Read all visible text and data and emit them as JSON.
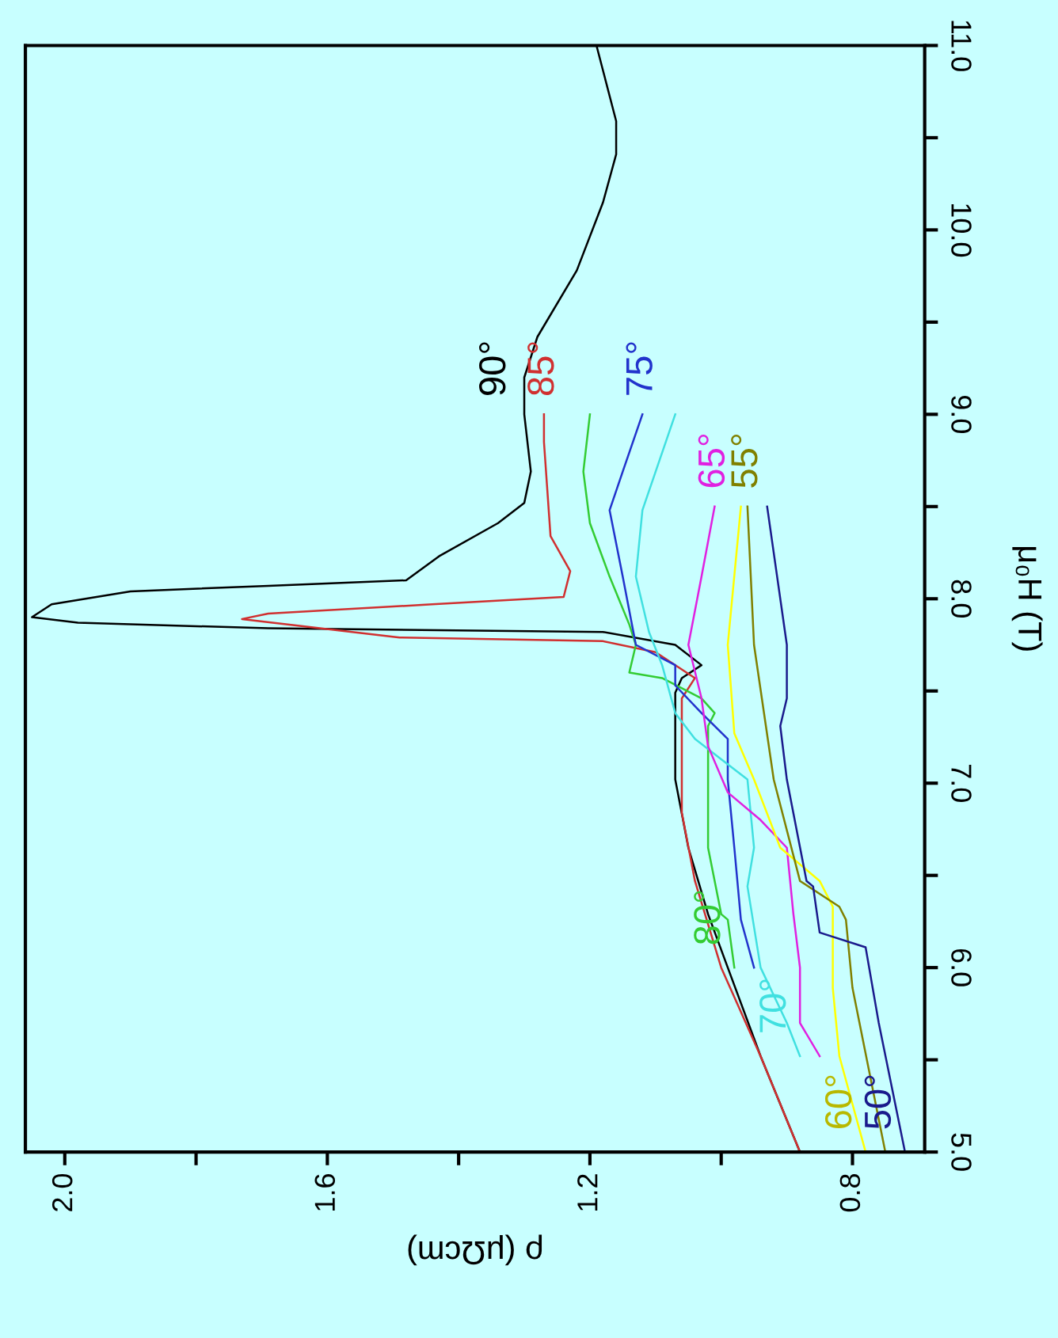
{
  "chart_data": {
    "type": "line",
    "xlabel": "ρ (μΩcm)",
    "ylabel": "μ₀H (T)",
    "xlim": [
      2.06,
      0.69
    ],
    "ylim": [
      5,
      11
    ],
    "xticks": [
      {
        "value": 0.8,
        "label": "0.8"
      },
      {
        "value": 1.0,
        "label": null
      },
      {
        "value": 1.2,
        "label": "1.2"
      },
      {
        "value": 1.4,
        "label": null
      },
      {
        "value": 1.6,
        "label": "1.6"
      },
      {
        "value": 1.8,
        "label": null
      },
      {
        "value": 2.0,
        "label": "2.0"
      }
    ],
    "yticks": [
      {
        "value": 5,
        "label": "5.0"
      },
      {
        "value": 5.5,
        "label": null
      },
      {
        "value": 6,
        "label": "6.0"
      },
      {
        "value": 6.5,
        "label": null
      },
      {
        "value": 7,
        "label": "7.0"
      },
      {
        "value": 7.5,
        "label": null
      },
      {
        "value": 8,
        "label": "8.0"
      },
      {
        "value": 8.5,
        "label": null
      },
      {
        "value": 9,
        "label": "9.0"
      },
      {
        "value": 9.5,
        "label": null
      },
      {
        "value": 10,
        "label": "10.0"
      },
      {
        "value": 10.5,
        "label": null
      },
      {
        "value": 11,
        "label": "11.0"
      }
    ],
    "grid": false,
    "legend": false,
    "series": [
      {
        "name": "90°",
        "color": "#000000",
        "values": [
          5.0,
          5.52,
          6.0,
          6.29,
          6.65,
          7.02,
          7.31,
          7.49,
          7.57,
          7.64,
          7.75,
          7.82,
          7.84,
          7.87,
          7.9,
          7.97,
          8.04,
          8.07,
          8.1,
          8.23,
          8.41,
          8.52,
          8.69,
          9.0,
          9.2,
          9.42,
          9.78,
          10.15,
          10.41,
          10.59,
          11.0
        ],
        "x": [
          0.88,
          0.94,
          0.99,
          1.02,
          1.05,
          1.07,
          1.07,
          1.07,
          1.06,
          1.03,
          1.07,
          1.18,
          1.69,
          1.98,
          2.05,
          2.02,
          1.9,
          1.69,
          1.48,
          1.43,
          1.34,
          1.3,
          1.29,
          1.3,
          1.3,
          1.28,
          1.22,
          1.18,
          1.16,
          1.16,
          1.19
        ]
      },
      {
        "name": "85°",
        "color": "#d03030",
        "values": [
          5.0,
          5.52,
          6.0,
          6.47,
          6.84,
          7.2,
          7.46,
          7.57,
          7.71,
          7.77,
          7.79,
          7.89,
          7.92,
          7.97,
          8.01,
          8.15,
          8.34,
          8.85,
          9.0
        ],
        "x": [
          0.88,
          0.94,
          1.0,
          1.04,
          1.06,
          1.06,
          1.06,
          1.04,
          1.1,
          1.18,
          1.49,
          1.73,
          1.69,
          1.44,
          1.24,
          1.23,
          1.26,
          1.27,
          1.27
        ]
      },
      {
        "name": "80°",
        "color": "#33cc33",
        "values": [
          6.0,
          6.26,
          6.29,
          6.65,
          7.02,
          7.31,
          7.38,
          7.46,
          7.57,
          7.6,
          7.75,
          7.86,
          8.12,
          8.41,
          8.69,
          9.0
        ],
        "x": [
          0.98,
          0.99,
          1.0,
          1.02,
          1.02,
          1.02,
          1.01,
          1.03,
          1.09,
          1.14,
          1.13,
          1.14,
          1.17,
          1.2,
          1.21,
          1.2
        ]
      },
      {
        "name": "75°",
        "color": "#2233cc",
        "values": [
          6.0,
          6.26,
          6.65,
          7.02,
          7.24,
          7.38,
          7.53,
          7.64,
          7.75,
          8.12,
          8.48,
          8.69,
          9.0
        ],
        "x": [
          0.95,
          0.97,
          0.98,
          0.99,
          0.99,
          1.03,
          1.07,
          1.07,
          1.13,
          1.15,
          1.17,
          1.15,
          1.12
        ]
      },
      {
        "name": "70°",
        "color": "#40e0e0",
        "values": [
          5.52,
          5.7,
          6.0,
          6.44,
          6.65,
          7.02,
          7.13,
          7.24,
          7.38,
          7.64,
          7.82,
          8.12,
          8.48,
          9.0
        ],
        "x": [
          0.88,
          0.9,
          0.94,
          0.96,
          0.95,
          0.96,
          1.0,
          1.04,
          1.07,
          1.09,
          1.11,
          1.13,
          1.12,
          1.07
        ]
      },
      {
        "name": "65°",
        "color": "#e020e0",
        "values": [
          5.52,
          5.7,
          6.0,
          6.29,
          6.65,
          6.8,
          6.95,
          7.2,
          7.46,
          7.75,
          8.12,
          8.5
        ],
        "x": [
          0.85,
          0.88,
          0.88,
          0.89,
          0.9,
          0.94,
          0.99,
          1.02,
          1.03,
          1.05,
          1.03,
          1.01
        ]
      },
      {
        "name": "60°",
        "color": "#ffff00",
        "values": [
          5.0,
          5.52,
          5.89,
          6.33,
          6.47,
          6.65,
          7.02,
          7.27,
          7.75,
          8.5
        ],
        "x": [
          0.78,
          0.82,
          0.83,
          0.83,
          0.85,
          0.91,
          0.95,
          0.98,
          0.99,
          0.97
        ]
      },
      {
        "name": "55°",
        "color": "#808000",
        "values": [
          5.0,
          5.89,
          6.26,
          6.33,
          6.47,
          7.02,
          7.75,
          8.5
        ],
        "x": [
          0.75,
          0.8,
          0.81,
          0.82,
          0.88,
          0.92,
          0.95,
          0.96
        ]
      },
      {
        "name": "50°",
        "color": "#1a1a8c",
        "values": [
          5.0,
          5.7,
          6.11,
          6.19,
          6.44,
          6.47,
          7.02,
          7.31,
          7.46,
          7.75,
          8.5
        ],
        "x": [
          0.72,
          0.76,
          0.78,
          0.85,
          0.86,
          0.87,
          0.9,
          0.91,
          0.9,
          0.9,
          0.93
        ]
      }
    ]
  }
}
